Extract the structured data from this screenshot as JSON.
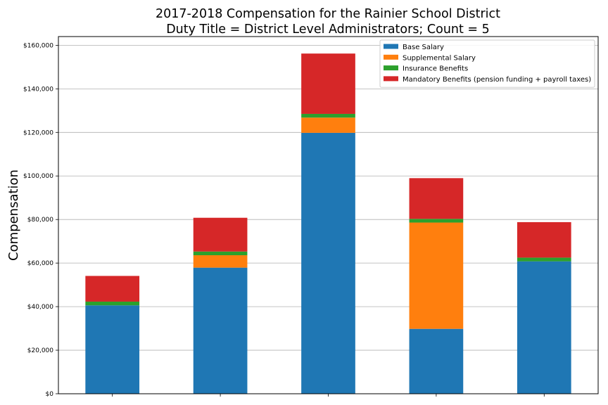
{
  "chart_data": {
    "type": "bar",
    "stacked": true,
    "title": "2017-2018 Compensation for the Rainier School District",
    "subtitle": "Duty Title = District Level Administrators; Count = 5",
    "xlabel": "",
    "ylabel": "Compensation",
    "ylim": [
      0,
      164000
    ],
    "yticks": [
      0,
      20000,
      40000,
      60000,
      80000,
      100000,
      120000,
      140000,
      160000
    ],
    "ytick_labels": [
      "$0",
      "$20,000",
      "$40,000",
      "$60,000",
      "$80,000",
      "$100,000",
      "$120,000",
      "$140,000",
      "$160,000"
    ],
    "categories": [
      "",
      "",
      "",
      "",
      ""
    ],
    "grid": "horizontal",
    "legend_position": "top-right",
    "series": [
      {
        "name": "Base Salary",
        "color": "#1f77b4",
        "values": [
          40600,
          57900,
          119800,
          29800,
          60800
        ]
      },
      {
        "name": "Supplemental Salary",
        "color": "#ff7f0e",
        "values": [
          0,
          5700,
          7000,
          48800,
          0
        ]
      },
      {
        "name": "Insurance Benefits",
        "color": "#2ca02c",
        "values": [
          1700,
          1700,
          1700,
          1700,
          1700
        ]
      },
      {
        "name": "Mandatory Benefits (pension funding + payroll taxes)",
        "color": "#d62728",
        "values": [
          11800,
          15500,
          27700,
          18700,
          16300
        ]
      }
    ]
  }
}
